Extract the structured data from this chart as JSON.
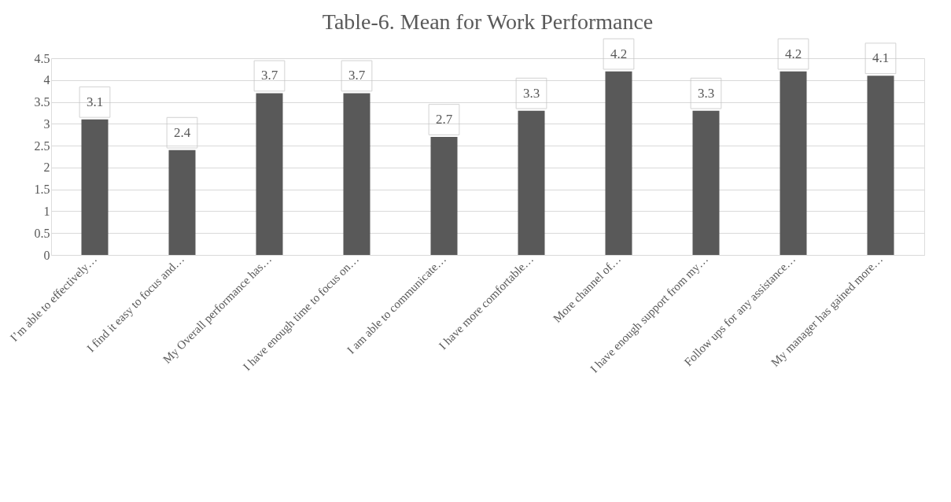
{
  "chart_data": {
    "type": "bar",
    "title": "Table-6. Mean for Work Performance",
    "categories": [
      "I’m able to effectively…",
      "I find it easy to focus and…",
      "My Overall performance has…",
      "I have enough time to focus on…",
      "I am able to communicate…",
      "I have more comfortable…",
      "More channel of…",
      "I have enough support from my…",
      "Follow ups for any assistance…",
      "My manager has gained more…"
    ],
    "values": [
      3.1,
      2.4,
      3.7,
      3.7,
      2.7,
      3.3,
      4.2,
      3.3,
      4.2,
      4.1
    ],
    "color": "#595959",
    "ylim": [
      0,
      4.5
    ],
    "yticks": [
      0,
      0.5,
      1,
      1.5,
      2,
      2.5,
      3,
      3.5,
      4,
      4.5
    ],
    "grid": "y",
    "data_labels": true
  }
}
